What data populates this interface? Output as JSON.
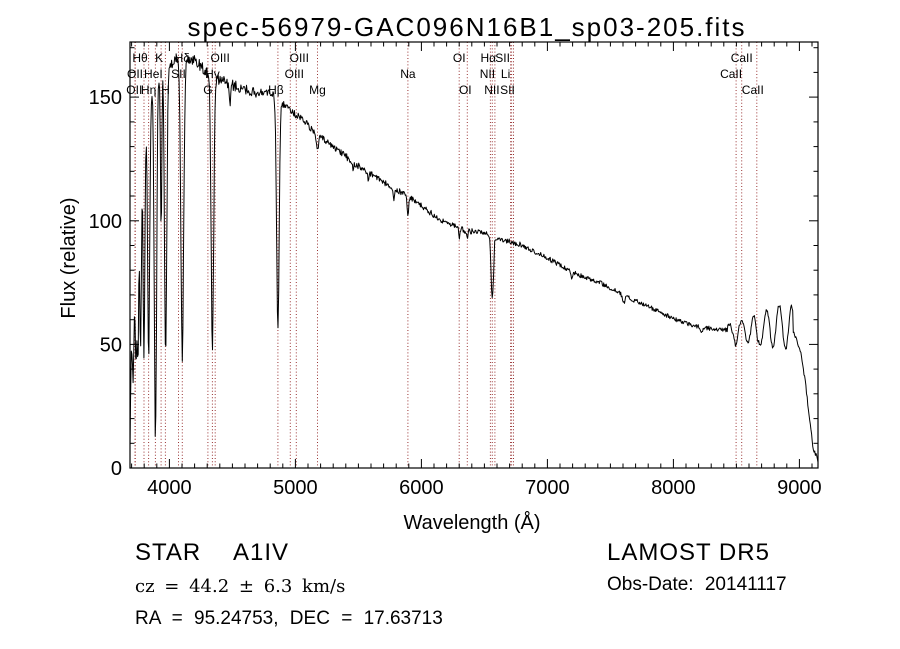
{
  "annotations": {
    "object_type": "STAR",
    "spectral_class": "A1IV",
    "cz_line": "cz = 44.2 ± 6.3 km/s",
    "ra_dec": "RA = 95.24753, DEC = 17.63713",
    "survey": "LAMOST DR5",
    "obs_date": "Obs-Date: 20141117"
  },
  "chart_data": {
    "type": "line",
    "title": "spec-56979-GAC096N16B1_sp03-205.fits",
    "xlabel": "Wavelength (Å)",
    "ylabel": "Flux (relative)",
    "xlim": [
      3687,
      9148
    ],
    "ylim": [
      0,
      172.3
    ],
    "x_ticks": [
      4000,
      5000,
      6000,
      7000,
      8000,
      9000
    ],
    "x_minor_step": 100,
    "y_ticks": [
      0,
      50,
      100,
      150
    ],
    "y_minor_step": 10,
    "grid": false,
    "legend": "none",
    "curve_color": "#000000",
    "marker_color": "#993333",
    "spectral_line_markers": [
      {
        "label": "OII",
        "wl": 3727,
        "row": 2
      },
      {
        "label": "OII",
        "wl": 3729,
        "row": 3,
        "dx": -1
      },
      {
        "label": "Hθ",
        "wl": 3798,
        "row": 1,
        "dx": -4
      },
      {
        "label": "Hη",
        "wl": 3835,
        "row": 3
      },
      {
        "label": "HeI",
        "wl": 3889,
        "row": 2,
        "dx": -2
      },
      {
        "label": "K",
        "wl": 3934,
        "row": 1,
        "dx": -2
      },
      {
        "label": "H",
        "wl": 3968,
        "row": 3
      },
      {
        "label": "SII",
        "wl": 4072,
        "row": 2
      },
      {
        "label": "Hδ",
        "wl": 4102,
        "row": 1
      },
      {
        "label": "G",
        "wl": 4305,
        "row": 3
      },
      {
        "label": "Hγ",
        "wl": 4341,
        "row": 2
      },
      {
        "label": "OIII",
        "wl": 4363,
        "row": 1,
        "dx": 5
      },
      {
        "label": "Hβ",
        "wl": 4861,
        "row": 3,
        "dx": -2
      },
      {
        "label": "OIII",
        "wl": 4959,
        "row": 2,
        "dx": 4
      },
      {
        "label": "OIII",
        "wl": 5007,
        "row": 1,
        "dx": 3
      },
      {
        "label": "Mg",
        "wl": 5175,
        "row": 3
      },
      {
        "label": "Na",
        "wl": 5893,
        "row": 2
      },
      {
        "label": "OI",
        "wl": 6300,
        "row": 1
      },
      {
        "label": "OI",
        "wl": 6364,
        "row": 3,
        "dx": -2
      },
      {
        "label": "NII",
        "wl": 6548,
        "row": 2,
        "dx": -3
      },
      {
        "label": "Hα",
        "wl": 6563,
        "row": 1,
        "dx": -4
      },
      {
        "label": "NII",
        "wl": 6583,
        "row": 3,
        "dx": -3
      },
      {
        "label": "Li",
        "wl": 6708,
        "row": 2,
        "dx": -5
      },
      {
        "label": "SII",
        "wl": 6716,
        "row": 1,
        "dx": -9
      },
      {
        "label": "SII",
        "wl": 6731,
        "row": 3,
        "dx": -6
      },
      {
        "label": "CaII",
        "wl": 8498,
        "row": 2,
        "dx": -5
      },
      {
        "label": "CaII",
        "wl": 8542,
        "row": 1
      },
      {
        "label": "CaII",
        "wl": 8662,
        "row": 3,
        "dx": -4
      }
    ],
    "continuum_anchors": [
      [
        3687,
        8
      ],
      [
        3695,
        45
      ],
      [
        3710,
        72
      ],
      [
        3730,
        96
      ],
      [
        3760,
        118
      ],
      [
        3800,
        136
      ],
      [
        3850,
        150
      ],
      [
        3900,
        158
      ],
      [
        3950,
        161
      ],
      [
        4000,
        163
      ],
      [
        4100,
        166
      ],
      [
        4200,
        165
      ],
      [
        4300,
        160
      ],
      [
        4400,
        157
      ],
      [
        4500,
        155
      ],
      [
        4650,
        152
      ],
      [
        4800,
        152
      ],
      [
        4861,
        149
      ],
      [
        4950,
        145
      ],
      [
        5050,
        141
      ],
      [
        5175,
        135
      ],
      [
        5300,
        130
      ],
      [
        5450,
        124
      ],
      [
        5600,
        119
      ],
      [
        5750,
        114
      ],
      [
        5900,
        110
      ],
      [
        6050,
        104
      ],
      [
        6200,
        99
      ],
      [
        6350,
        96
      ],
      [
        6500,
        95
      ],
      [
        6650,
        92.5
      ],
      [
        6800,
        90
      ],
      [
        7000,
        85
      ],
      [
        7100,
        82
      ],
      [
        7250,
        78
      ],
      [
        7417,
        75
      ],
      [
        7600,
        70
      ],
      [
        7814,
        65
      ],
      [
        8000,
        60.5
      ],
      [
        8100,
        58.5
      ],
      [
        8211,
        57
      ],
      [
        8369,
        56
      ],
      [
        8500,
        55.5
      ],
      [
        8650,
        56
      ],
      [
        8800,
        57
      ],
      [
        8900,
        57.5
      ],
      [
        8960,
        54
      ],
      [
        9010,
        47
      ],
      [
        9050,
        34
      ],
      [
        9080,
        20
      ],
      [
        9110,
        8
      ],
      [
        9148,
        3
      ]
    ],
    "absorption_lines": [
      [
        3712,
        0.5,
        7
      ],
      [
        3734,
        0.55,
        7
      ],
      [
        3750,
        0.6,
        6.5
      ],
      [
        3771,
        0.62,
        6.5
      ],
      [
        3798,
        0.66,
        7
      ],
      [
        3835,
        0.7,
        8
      ],
      [
        3889,
        0.93,
        9
      ],
      [
        3934,
        0.42,
        5
      ],
      [
        3970,
        0.72,
        9
      ],
      [
        4102,
        0.73,
        11
      ],
      [
        4341,
        0.7,
        10
      ],
      [
        4481,
        0.06,
        5
      ],
      [
        4861,
        0.62,
        10
      ],
      [
        5175,
        0.045,
        8
      ],
      [
        5460,
        0.03,
        4
      ],
      [
        5577,
        0.04,
        4
      ],
      [
        5780,
        0.045,
        5
      ],
      [
        5893,
        0.075,
        6
      ],
      [
        6300,
        0.05,
        4
      ],
      [
        6364,
        0.035,
        4
      ],
      [
        6563,
        0.28,
        9
      ],
      [
        7190,
        0.03,
        8
      ],
      [
        7605,
        0.05,
        9
      ],
      [
        8227,
        0.03,
        8
      ],
      [
        8498,
        0.05,
        9
      ],
      [
        8662,
        0.06,
        9
      ]
    ],
    "fringing": {
      "start": 8430,
      "end": 8950,
      "trough_start": 8490,
      "period": 100,
      "amp_base": 2.5,
      "amp_rate": 0.015
    },
    "noise": [
      [
        3687,
        4000,
        2.5
      ],
      [
        4000,
        4700,
        2.2
      ],
      [
        4700,
        5600,
        1.4
      ],
      [
        5600,
        6800,
        1.2
      ],
      [
        6800,
        8430,
        0.9
      ],
      [
        8430,
        9148,
        0.8
      ]
    ]
  }
}
